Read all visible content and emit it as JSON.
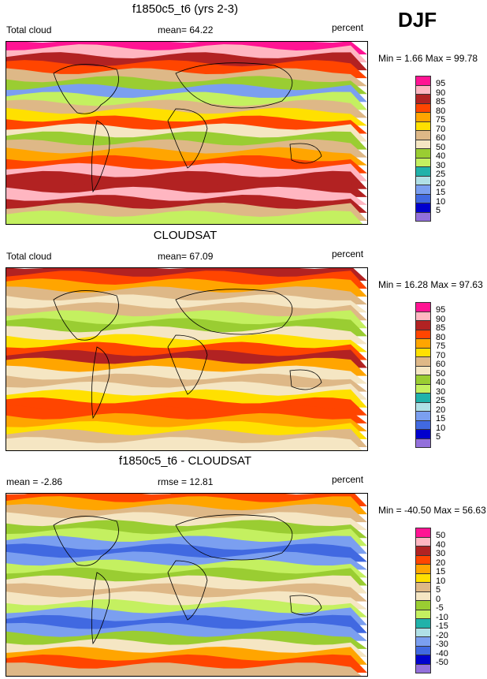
{
  "season": "DJF",
  "colors": [
    "#ff1493",
    "#ffb6c1",
    "#b22222",
    "#ff4500",
    "#ffa500",
    "#ffe000",
    "#deb887",
    "#f5e6c3",
    "#9acd32",
    "#c4f060",
    "#20b2aa",
    "#b0e0e6",
    "#7b9ff0",
    "#4169e1",
    "#0000cd",
    "#9370db"
  ],
  "panels": [
    {
      "title": "f1850c5_t6 (yrs 2-3)",
      "left_label": "Total cloud",
      "center_label": "mean=  64.22",
      "right_label": "percent",
      "minmax": "Min =   1.66 Max =  99.78",
      "colorbar_labels": [
        "95",
        "90",
        "85",
        "80",
        "75",
        "70",
        "60",
        "50",
        "40",
        "30",
        "25",
        "20",
        "15",
        "10",
        "5"
      ]
    },
    {
      "title": "CLOUDSAT",
      "left_label": "Total cloud",
      "center_label": "mean=  67.09",
      "right_label": "percent",
      "minmax": "Min =  16.28 Max =  97.63",
      "colorbar_labels": [
        "95",
        "90",
        "85",
        "80",
        "75",
        "70",
        "60",
        "50",
        "40",
        "30",
        "25",
        "20",
        "15",
        "10",
        "5"
      ]
    },
    {
      "title": "f1850c5_t6 - CLOUDSAT",
      "left_label": "mean =  -2.86",
      "center_label": "rmse =  12.81",
      "right_label": "percent",
      "minmax": "Min = -40.50 Max =  56.63",
      "colorbar_labels": [
        "50",
        "40",
        "30",
        "20",
        "15",
        "10",
        "5",
        "0",
        "-5",
        "-10",
        "-15",
        "-20",
        "-30",
        "-40",
        "-50"
      ]
    }
  ]
}
